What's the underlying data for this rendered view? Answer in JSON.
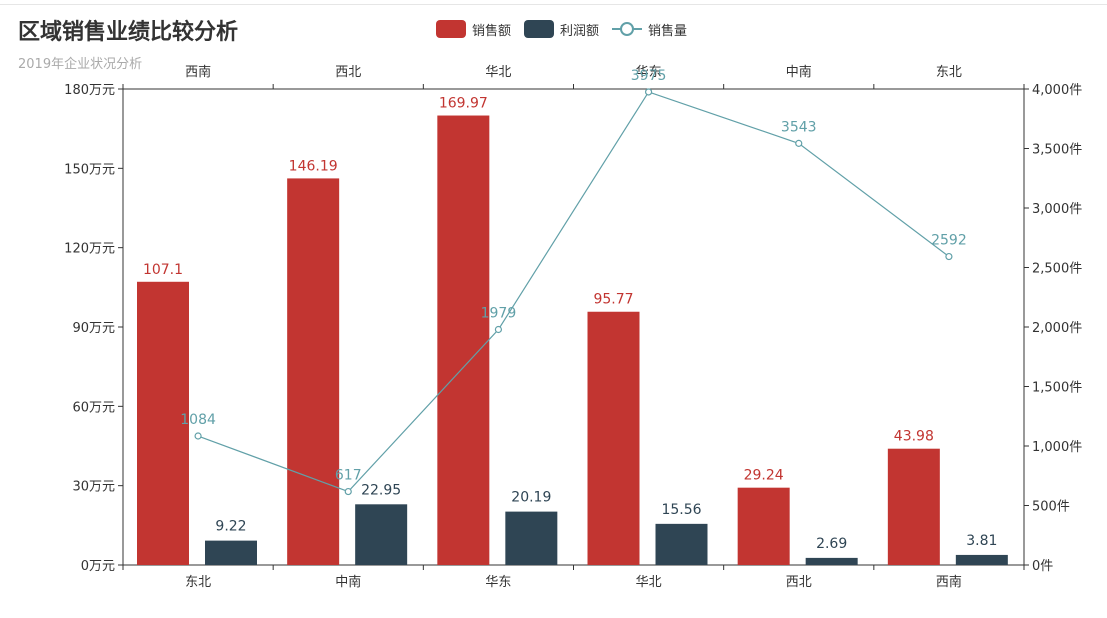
{
  "title": "区域销售业绩比较分析",
  "subtitle": "2019年企业状况分析",
  "legend": {
    "sales": "销售额",
    "profit": "利润额",
    "volume": "销售量"
  },
  "colors": {
    "sales": "#c23531",
    "profit": "#2f4554",
    "volume": "#61a0a8",
    "axis": "#333333",
    "text": "#333333"
  },
  "chart_data": {
    "type": "bar",
    "title": "区域销售业绩比较分析",
    "subtitle": "2019年企业状况分析",
    "categories": [
      "东北",
      "中南",
      "华东",
      "华北",
      "西北",
      "西南"
    ],
    "top_categories": [
      "西南",
      "西北",
      "华北",
      "华东",
      "中南",
      "东北"
    ],
    "y_left": {
      "min": 0,
      "max": 180,
      "interval": 30,
      "tick_labels": [
        "0万元",
        "30万元",
        "60万元",
        "90万元",
        "120万元",
        "150万元",
        "180万元"
      ]
    },
    "y_right": {
      "min": 0,
      "max": 4000,
      "interval": 500,
      "tick_labels": [
        "0件",
        "500件",
        "1,000件",
        "1,500件",
        "2,000件",
        "2,500件",
        "3,000件",
        "3,500件",
        "4,000件"
      ]
    },
    "series": [
      {
        "name": "销售额",
        "type": "bar",
        "axis": "left",
        "values": [
          107.1,
          146.19,
          169.97,
          95.77,
          29.24,
          43.98
        ],
        "labels": [
          "107.1",
          "146.19",
          "169.97",
          "95.77",
          "29.24",
          "43.98"
        ]
      },
      {
        "name": "利润额",
        "type": "bar",
        "axis": "left",
        "values": [
          9.22,
          22.95,
          20.19,
          15.56,
          2.69,
          3.81
        ],
        "labels": [
          "9.22",
          "22.95",
          "20.19",
          "15.56",
          "2.69",
          "3.81"
        ]
      },
      {
        "name": "销售量",
        "type": "line",
        "axis": "right",
        "values": [
          1084,
          617,
          1979,
          3975,
          3543,
          2592
        ],
        "labels": [
          "1084",
          "617",
          "1979",
          "3975",
          "3543",
          "2592"
        ]
      }
    ],
    "grid": false,
    "legend_position": "top-center"
  }
}
